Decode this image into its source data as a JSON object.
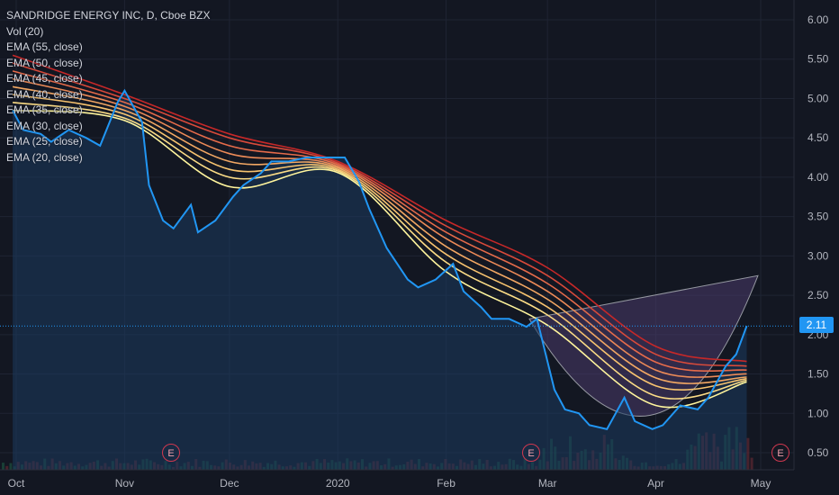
{
  "legend": {
    "title": "SANDRIDGE ENERGY INC, D, Cboe BZX",
    "vol": "Vol (20)",
    "ema": [
      "EMA (55, close)",
      "EMA (50, close)",
      "EMA (45, close)",
      "EMA (40, close)",
      "EMA (35, close)",
      "EMA (30, close)",
      "EMA (25, close)",
      "EMA (20, close)"
    ]
  },
  "price_label": "2.11",
  "earnings_marker": "E",
  "colors": {
    "background": "#131722",
    "price_line": "#2196f3",
    "ema_fast": "#fff59d",
    "ema_slow": "#c62828",
    "earnings": "#d0384f",
    "cup_fill": "#4a3a6a"
  },
  "chart_data": {
    "type": "line",
    "title": "SANDRIDGE ENERGY INC, D, Cboe BZX",
    "xlabel": "",
    "ylabel": "",
    "ylim": [
      0.35,
      6.2
    ],
    "x_ticks": [
      "Oct",
      "Nov",
      "Dec",
      "2020",
      "Feb",
      "Mar",
      "Apr",
      "May"
    ],
    "y_ticks": [
      "6.00",
      "5.50",
      "5.00",
      "4.50",
      "4.00",
      "3.50",
      "3.00",
      "2.50",
      "2.00",
      "1.50",
      "1.00",
      "0.50"
    ],
    "last_price": 2.11,
    "grid": true,
    "legend_position": "top-left",
    "price_series": {
      "name": "SANDRIDGE ENERGY INC",
      "x": [
        "2019-09-30",
        "2019-10-03",
        "2019-10-08",
        "2019-10-11",
        "2019-10-16",
        "2019-10-21",
        "2019-10-25",
        "2019-10-30",
        "2019-11-01",
        "2019-11-06",
        "2019-11-08",
        "2019-11-12",
        "2019-11-15",
        "2019-11-20",
        "2019-11-22",
        "2019-11-27",
        "2019-12-02",
        "2019-12-05",
        "2019-12-10",
        "2019-12-13",
        "2019-12-18",
        "2019-12-23",
        "2019-12-30",
        "2020-01-03",
        "2020-01-07",
        "2020-01-10",
        "2020-01-15",
        "2020-01-21",
        "2020-01-24",
        "2020-01-29",
        "2020-02-03",
        "2020-02-06",
        "2020-02-11",
        "2020-02-14",
        "2020-02-19",
        "2020-02-24",
        "2020-02-27",
        "2020-03-03",
        "2020-03-06",
        "2020-03-10",
        "2020-03-13",
        "2020-03-18",
        "2020-03-23",
        "2020-03-26",
        "2020-03-31",
        "2020-04-03",
        "2020-04-08",
        "2020-04-13",
        "2020-04-16",
        "2020-04-21",
        "2020-04-24",
        "2020-04-27"
      ],
      "y": [
        4.85,
        4.6,
        4.55,
        4.45,
        4.6,
        4.5,
        4.4,
        4.95,
        5.1,
        4.7,
        3.9,
        3.45,
        3.35,
        3.65,
        3.3,
        3.45,
        3.75,
        3.9,
        4.05,
        4.2,
        4.2,
        4.25,
        4.25,
        4.25,
        3.95,
        3.6,
        3.1,
        2.7,
        2.6,
        2.7,
        2.9,
        2.55,
        2.35,
        2.2,
        2.2,
        2.1,
        2.2,
        1.3,
        1.05,
        1.0,
        0.85,
        0.8,
        1.2,
        0.9,
        0.8,
        0.85,
        1.1,
        1.05,
        1.2,
        1.6,
        1.75,
        2.11
      ]
    },
    "series": [
      {
        "name": "EMA (55, close)",
        "x": [
          "2019-09-30",
          "2019-11-01",
          "2019-12-01",
          "2020-01-01",
          "2020-02-01",
          "2020-03-01",
          "2020-04-01",
          "2020-04-27"
        ],
        "y": [
          5.55,
          5.05,
          4.55,
          4.2,
          3.45,
          2.85,
          1.85,
          1.66
        ]
      },
      {
        "name": "EMA (50, close)",
        "x": [
          "2019-09-30",
          "2019-11-01",
          "2019-12-01",
          "2020-01-01",
          "2020-02-01",
          "2020-03-01",
          "2020-04-01",
          "2020-04-27"
        ],
        "y": [
          5.45,
          5.0,
          4.5,
          4.18,
          3.38,
          2.75,
          1.75,
          1.6
        ]
      },
      {
        "name": "EMA (45, close)",
        "x": [
          "2019-09-30",
          "2019-11-01",
          "2019-12-01",
          "2020-01-01",
          "2020-02-01",
          "2020-03-01",
          "2020-04-01",
          "2020-04-27"
        ],
        "y": [
          5.35,
          4.95,
          4.4,
          4.16,
          3.3,
          2.65,
          1.65,
          1.55
        ]
      },
      {
        "name": "EMA (40, close)",
        "x": [
          "2019-09-30",
          "2019-11-01",
          "2019-12-01",
          "2020-01-01",
          "2020-02-01",
          "2020-03-01",
          "2020-04-01",
          "2020-04-27"
        ],
        "y": [
          5.25,
          4.9,
          4.3,
          4.14,
          3.22,
          2.55,
          1.55,
          1.5
        ]
      },
      {
        "name": "EMA (35, close)",
        "x": [
          "2019-09-30",
          "2019-11-01",
          "2019-12-01",
          "2020-01-01",
          "2020-02-01",
          "2020-03-01",
          "2020-04-01",
          "2020-04-27"
        ],
        "y": [
          5.15,
          4.85,
          4.2,
          4.12,
          3.12,
          2.45,
          1.45,
          1.46
        ]
      },
      {
        "name": "EMA (30, close)",
        "x": [
          "2019-09-30",
          "2019-11-01",
          "2019-12-01",
          "2020-01-01",
          "2020-02-01",
          "2020-03-01",
          "2020-04-01",
          "2020-04-27"
        ],
        "y": [
          5.05,
          4.8,
          4.1,
          4.1,
          3.02,
          2.35,
          1.35,
          1.44
        ]
      },
      {
        "name": "EMA (25, close)",
        "x": [
          "2019-09-30",
          "2019-11-01",
          "2019-12-01",
          "2020-01-01",
          "2020-02-01",
          "2020-03-01",
          "2020-04-01",
          "2020-04-27"
        ],
        "y": [
          4.95,
          4.75,
          4.0,
          4.08,
          2.92,
          2.25,
          1.22,
          1.42
        ]
      },
      {
        "name": "EMA (20, close)",
        "x": [
          "2019-09-30",
          "2019-11-01",
          "2019-12-01",
          "2020-01-01",
          "2020-02-01",
          "2020-03-01",
          "2020-04-01",
          "2020-04-27"
        ],
        "y": [
          4.85,
          4.72,
          3.88,
          4.06,
          2.8,
          2.12,
          1.1,
          1.4
        ]
      }
    ]
  }
}
